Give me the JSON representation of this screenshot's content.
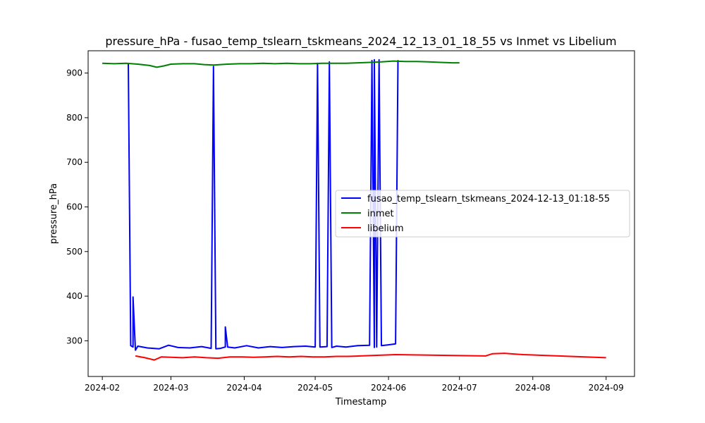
{
  "chart_data": {
    "type": "line",
    "title": "pressure_hPa - fusao_temp_tslearn_tskmeans_2024_12_13_01_18_55 vs Inmet vs Libelium",
    "xlabel": "Timestamp",
    "ylabel": "pressure_hPa",
    "x_axis_type": "date",
    "xlim": [
      "2024-01-26",
      "2024-09-13"
    ],
    "ylim": [
      220,
      950
    ],
    "x_ticks": [
      "2024-02-01",
      "2024-03-01",
      "2024-04-01",
      "2024-05-01",
      "2024-06-01",
      "2024-07-01",
      "2024-08-01",
      "2024-09-01"
    ],
    "x_tick_labels": [
      "2024-02",
      "2024-03",
      "2024-04",
      "2024-05",
      "2024-06",
      "2024-07",
      "2024-08",
      "2024-09"
    ],
    "y_ticks": [
      300,
      400,
      500,
      600,
      700,
      800,
      900
    ],
    "grid": false,
    "legend_position": "center-right",
    "series": [
      {
        "name": "fusao_temp_tslearn_tskmeans_2024-12-13_01:18-55",
        "color": "#0000ff",
        "points": [
          [
            "2024-02-12",
            920
          ],
          [
            "2024-02-13",
            289
          ],
          [
            "2024-02-14",
            286
          ],
          [
            "2024-02-14",
            398
          ],
          [
            "2024-02-15",
            279
          ],
          [
            "2024-02-16",
            288
          ],
          [
            "2024-02-20",
            284
          ],
          [
            "2024-02-25",
            282
          ],
          [
            "2024-02-29",
            290
          ],
          [
            "2024-03-04",
            285
          ],
          [
            "2024-03-09",
            284
          ],
          [
            "2024-03-14",
            287
          ],
          [
            "2024-03-18",
            283
          ],
          [
            "2024-03-19",
            915
          ],
          [
            "2024-03-20",
            282
          ],
          [
            "2024-03-22",
            283
          ],
          [
            "2024-03-24",
            286
          ],
          [
            "2024-03-24",
            331
          ],
          [
            "2024-03-25",
            286
          ],
          [
            "2024-03-28",
            284
          ],
          [
            "2024-04-02",
            289
          ],
          [
            "2024-04-07",
            284
          ],
          [
            "2024-04-12",
            287
          ],
          [
            "2024-04-17",
            285
          ],
          [
            "2024-04-22",
            287
          ],
          [
            "2024-04-27",
            288
          ],
          [
            "2024-05-01",
            286
          ],
          [
            "2024-05-02",
            922
          ],
          [
            "2024-05-03",
            286
          ],
          [
            "2024-05-06",
            287
          ],
          [
            "2024-05-07",
            925
          ],
          [
            "2024-05-08",
            285
          ],
          [
            "2024-05-10",
            288
          ],
          [
            "2024-05-14",
            286
          ],
          [
            "2024-05-19",
            289
          ],
          [
            "2024-05-24",
            290
          ],
          [
            "2024-05-25",
            928
          ],
          [
            "2024-05-26",
            285
          ],
          [
            "2024-05-26",
            930
          ],
          [
            "2024-05-27",
            286
          ],
          [
            "2024-05-28",
            930
          ],
          [
            "2024-05-29",
            289
          ],
          [
            "2024-06-01",
            291
          ],
          [
            "2024-06-04",
            293
          ],
          [
            "2024-06-05",
            929
          ]
        ]
      },
      {
        "name": "inmet",
        "color": "#008000",
        "points": [
          [
            "2024-02-01",
            922
          ],
          [
            "2024-02-06",
            921
          ],
          [
            "2024-02-11",
            922
          ],
          [
            "2024-02-16",
            920
          ],
          [
            "2024-02-21",
            917
          ],
          [
            "2024-02-24",
            913
          ],
          [
            "2024-02-27",
            916
          ],
          [
            "2024-03-01",
            920
          ],
          [
            "2024-03-06",
            921
          ],
          [
            "2024-03-11",
            921
          ],
          [
            "2024-03-15",
            919
          ],
          [
            "2024-03-19",
            918
          ],
          [
            "2024-03-22",
            919
          ],
          [
            "2024-03-25",
            920
          ],
          [
            "2024-03-30",
            921
          ],
          [
            "2024-04-04",
            921
          ],
          [
            "2024-04-09",
            922
          ],
          [
            "2024-04-14",
            921
          ],
          [
            "2024-04-19",
            922
          ],
          [
            "2024-04-24",
            921
          ],
          [
            "2024-04-29",
            921
          ],
          [
            "2024-05-04",
            922
          ],
          [
            "2024-05-09",
            922
          ],
          [
            "2024-05-14",
            922
          ],
          [
            "2024-05-19",
            923
          ],
          [
            "2024-05-24",
            924
          ],
          [
            "2024-05-29",
            925
          ],
          [
            "2024-06-03",
            927
          ],
          [
            "2024-06-08",
            926
          ],
          [
            "2024-06-13",
            926
          ],
          [
            "2024-06-18",
            925
          ],
          [
            "2024-06-23",
            924
          ],
          [
            "2024-06-28",
            923
          ],
          [
            "2024-07-01",
            923
          ]
        ]
      },
      {
        "name": "libelium",
        "color": "#ff0000",
        "points": [
          [
            "2024-02-15",
            266
          ],
          [
            "2024-02-19",
            262
          ],
          [
            "2024-02-23",
            257
          ],
          [
            "2024-02-26",
            264
          ],
          [
            "2024-03-01",
            263
          ],
          [
            "2024-03-06",
            262
          ],
          [
            "2024-03-11",
            264
          ],
          [
            "2024-03-16",
            262
          ],
          [
            "2024-03-21",
            261
          ],
          [
            "2024-03-26",
            264
          ],
          [
            "2024-03-31",
            264
          ],
          [
            "2024-04-05",
            263
          ],
          [
            "2024-04-10",
            264
          ],
          [
            "2024-04-15",
            265
          ],
          [
            "2024-04-20",
            264
          ],
          [
            "2024-04-25",
            265
          ],
          [
            "2024-04-30",
            264
          ],
          [
            "2024-05-05",
            264
          ],
          [
            "2024-05-10",
            265
          ],
          [
            "2024-05-15",
            265
          ],
          [
            "2024-05-20",
            266
          ],
          [
            "2024-05-25",
            267
          ],
          [
            "2024-05-30",
            268
          ],
          [
            "2024-06-04",
            269
          ],
          [
            "2024-07-12",
            266
          ],
          [
            "2024-07-15",
            271
          ],
          [
            "2024-07-20",
            272
          ],
          [
            "2024-07-25",
            270
          ],
          [
            "2024-07-28",
            269
          ],
          [
            "2024-09-01",
            262
          ]
        ]
      }
    ]
  }
}
